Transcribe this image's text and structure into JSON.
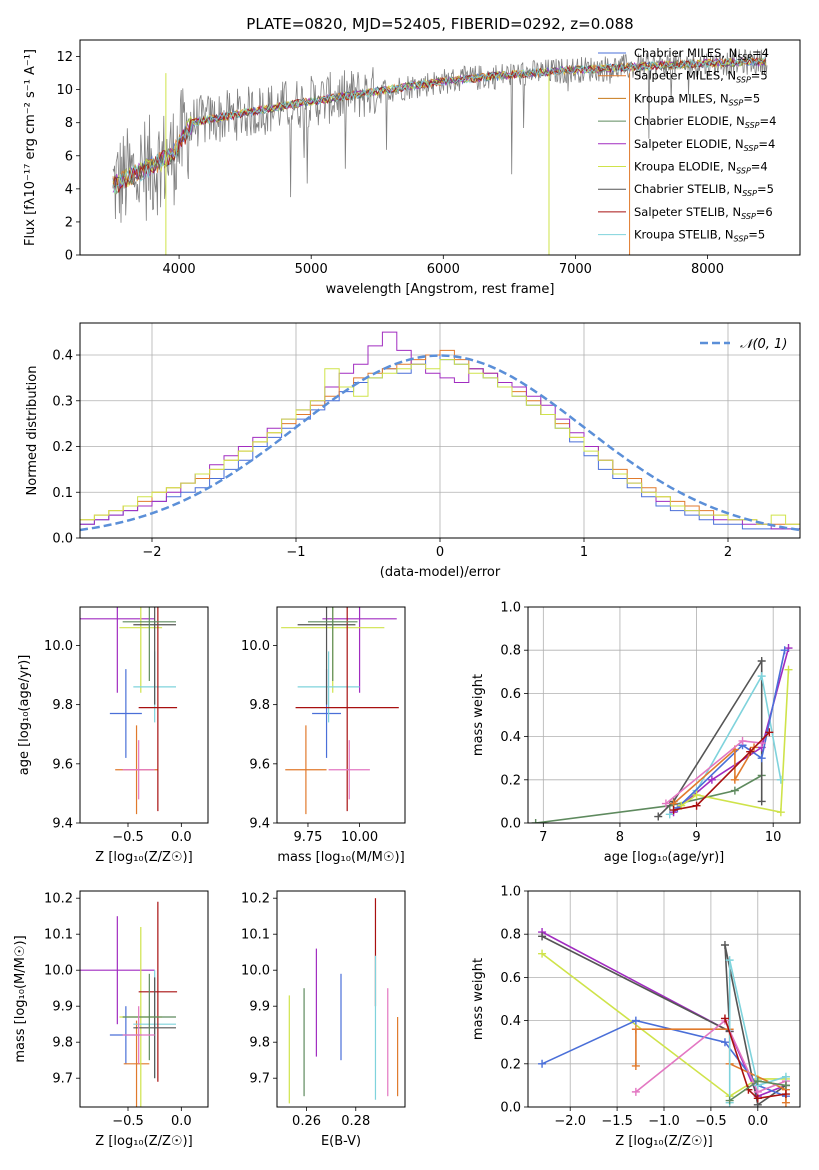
{
  "title": "PLATE=0820, MJD=52405, FIBERID=0292, z=0.088",
  "chart_data": [
    {
      "type": "line",
      "xlabel": "wavelength [Angstrom, rest frame]",
      "ylabel": "Flux [fλ10⁻¹⁷ erg cm⁻² s⁻¹ A⁻¹]",
      "xlim": [
        3250,
        8700
      ],
      "ylim": [
        0,
        13
      ],
      "xticks": [
        4000,
        5000,
        6000,
        7000,
        8000
      ],
      "yticks": [
        0,
        2,
        4,
        6,
        8,
        10,
        12
      ],
      "legend": "top-right",
      "series": [
        {
          "name": "Chabrier MILES, N_SSP=4",
          "color": "#4a6fd8"
        },
        {
          "name": "Salpeter MILES, N_SSP=5",
          "color": "#e07a2c"
        },
        {
          "name": "Kroupa MILES, N_SSP=5",
          "color": "#c77a1a"
        },
        {
          "name": "Chabrier ELODIE, N_SSP=4",
          "color": "#5e8a5e"
        },
        {
          "name": "Salpeter ELODIE, N_SSP=4",
          "color": "#a12cc0"
        },
        {
          "name": "Kroupa ELODIE, N_SSP=4",
          "color": "#cfe34a"
        },
        {
          "name": "Chabrier STELIB, N_SSP=5",
          "color": "#555555"
        },
        {
          "name": "Salpeter STELIB, N_SSP=6",
          "color": "#a81010"
        },
        {
          "name": "Kroupa STELIB, N_SSP=5",
          "color": "#7fd3dc"
        }
      ],
      "continuum": {
        "x": [
          3500,
          3700,
          3950,
          4100,
          4500,
          5000,
          5500,
          6000,
          6500,
          7000,
          7500,
          8000,
          8450
        ],
        "y": [
          4.2,
          5.0,
          6.0,
          8.0,
          8.6,
          9.3,
          9.9,
          10.5,
          10.9,
          11.2,
          11.4,
          11.6,
          11.7
        ]
      }
    },
    {
      "type": "step-histogram",
      "xlabel": "(data-model)/error",
      "ylabel": "Normed distribution",
      "xlim": [
        -2.5,
        2.5
      ],
      "ylim": [
        0,
        0.47
      ],
      "xticks": [
        -2,
        -1,
        0,
        1,
        2
      ],
      "yticks": [
        0.0,
        0.1,
        0.2,
        0.3,
        0.4
      ],
      "grid": true,
      "legend": "top-right",
      "reference": {
        "name": "𝒩(0, 1)",
        "color": "#5b8fd8",
        "mu": 0,
        "sigma": 1
      },
      "bin_width": 0.1,
      "sample_series": [
        {
          "color": "#4a6fd8",
          "values": [
            0.03,
            0.04,
            0.05,
            0.06,
            0.07,
            0.08,
            0.09,
            0.1,
            0.11,
            0.13,
            0.15,
            0.17,
            0.2,
            0.22,
            0.24,
            0.26,
            0.28,
            0.3,
            0.32,
            0.34,
            0.35,
            0.37,
            0.36,
            0.38,
            0.4,
            0.39,
            0.38,
            0.37,
            0.35,
            0.33,
            0.31,
            0.29,
            0.27,
            0.24,
            0.21,
            0.18,
            0.15,
            0.13,
            0.11,
            0.09,
            0.07,
            0.06,
            0.05,
            0.04,
            0.03,
            0.03,
            0.02,
            0.02,
            0.02,
            0.02
          ]
        },
        {
          "color": "#e07a2c",
          "values": [
            0.04,
            0.05,
            0.06,
            0.07,
            0.08,
            0.1,
            0.11,
            0.12,
            0.13,
            0.15,
            0.17,
            0.19,
            0.21,
            0.23,
            0.25,
            0.27,
            0.29,
            0.31,
            0.33,
            0.35,
            0.36,
            0.37,
            0.38,
            0.39,
            0.4,
            0.41,
            0.39,
            0.37,
            0.36,
            0.34,
            0.32,
            0.3,
            0.27,
            0.25,
            0.22,
            0.2,
            0.17,
            0.15,
            0.13,
            0.11,
            0.09,
            0.08,
            0.07,
            0.06,
            0.05,
            0.04,
            0.04,
            0.03,
            0.03,
            0.03
          ]
        },
        {
          "color": "#a12cc0",
          "values": [
            0.03,
            0.04,
            0.05,
            0.06,
            0.07,
            0.08,
            0.1,
            0.12,
            0.14,
            0.16,
            0.18,
            0.2,
            0.22,
            0.24,
            0.26,
            0.28,
            0.3,
            0.33,
            0.36,
            0.38,
            0.42,
            0.45,
            0.41,
            0.38,
            0.36,
            0.35,
            0.34,
            0.37,
            0.36,
            0.34,
            0.33,
            0.31,
            0.29,
            0.26,
            0.23,
            0.2,
            0.17,
            0.14,
            0.12,
            0.1,
            0.08,
            0.07,
            0.06,
            0.05,
            0.04,
            0.04,
            0.03,
            0.03,
            0.02,
            0.02
          ]
        },
        {
          "color": "#cfe34a",
          "values": [
            0.04,
            0.05,
            0.06,
            0.07,
            0.09,
            0.1,
            0.11,
            0.12,
            0.14,
            0.15,
            0.17,
            0.19,
            0.21,
            0.23,
            0.26,
            0.28,
            0.3,
            0.37,
            0.33,
            0.31,
            0.35,
            0.36,
            0.37,
            0.38,
            0.37,
            0.39,
            0.38,
            0.36,
            0.35,
            0.33,
            0.31,
            0.29,
            0.27,
            0.24,
            0.22,
            0.19,
            0.17,
            0.14,
            0.12,
            0.1,
            0.09,
            0.07,
            0.06,
            0.05,
            0.05,
            0.04,
            0.04,
            0.03,
            0.05,
            0.03
          ]
        }
      ]
    },
    {
      "type": "errorbar",
      "xlabel": "Z [log₁₀(Z/Z☉)]",
      "ylabel": "age  [log₁₀(age/yr)]",
      "xlim": [
        -0.95,
        0.25
      ],
      "ylim": [
        9.4,
        10.13
      ],
      "xticks": [
        -0.5,
        0.0
      ],
      "xticklabels": [
        "−0.5",
        "0.0"
      ],
      "yticks": [
        9.4,
        9.6,
        9.8,
        10.0
      ],
      "points": [
        {
          "color": "#a12cc0",
          "x": -0.6,
          "xerr": 0.35,
          "y": 10.09,
          "yerr": 0.25
        },
        {
          "color": "#4a6fd8",
          "x": -0.52,
          "xerr": 0.15,
          "y": 9.77,
          "yerr": 0.15
        },
        {
          "color": "#e07a2c",
          "x": -0.42,
          "xerr": 0.2,
          "y": 9.58,
          "yerr": 0.15
        },
        {
          "color": "#cfe34a",
          "x": -0.38,
          "xerr": 0.2,
          "y": 10.06,
          "yerr": 0.22
        },
        {
          "color": "#7fd3dc",
          "x": -0.25,
          "xerr": 0.2,
          "y": 9.86,
          "yerr": 0.12
        },
        {
          "color": "#a81010",
          "x": -0.22,
          "xerr": 0.18,
          "y": 9.79,
          "yerr": 0.35
        },
        {
          "color": "#555555",
          "x": -0.25,
          "xerr": 0.2,
          "y": 10.07,
          "yerr": 0.27
        },
        {
          "color": "#5e8a5e",
          "x": -0.3,
          "xerr": 0.25,
          "y": 10.08,
          "yerr": 0.2
        },
        {
          "color": "#e377c2",
          "x": -0.4,
          "xerr": 0.15,
          "y": 9.58,
          "yerr": 0.1
        }
      ]
    },
    {
      "type": "errorbar",
      "xlabel": "mass [log₁₀(M/M☉)]",
      "ylabel": "",
      "xlim": [
        9.6,
        10.22
      ],
      "ylim": [
        9.4,
        10.13
      ],
      "xticks": [
        9.75,
        10.0
      ],
      "xticklabels": [
        "9.75",
        "10.00"
      ],
      "yticks": [
        9.4,
        9.6,
        9.8,
        10.0
      ],
      "points": [
        {
          "color": "#a12cc0",
          "x": 10.0,
          "xerr": 0.18,
          "y": 10.09,
          "yerr": 0.25
        },
        {
          "color": "#4a6fd8",
          "x": 9.84,
          "xerr": 0.07,
          "y": 9.77,
          "yerr": 0.15
        },
        {
          "color": "#e07a2c",
          "x": 9.74,
          "xerr": 0.1,
          "y": 9.58,
          "yerr": 0.15
        },
        {
          "color": "#cfe34a",
          "x": 9.87,
          "xerr": 0.25,
          "y": 10.06,
          "yerr": 0.22
        },
        {
          "color": "#7fd3dc",
          "x": 9.85,
          "xerr": 0.15,
          "y": 9.86,
          "yerr": 0.12
        },
        {
          "color": "#a81010",
          "x": 9.94,
          "xerr": 0.25,
          "y": 9.79,
          "yerr": 0.35
        },
        {
          "color": "#555555",
          "x": 9.84,
          "xerr": 0.14,
          "y": 10.07,
          "yerr": 0.27
        },
        {
          "color": "#5e8a5e",
          "x": 9.87,
          "xerr": 0.12,
          "y": 10.08,
          "yerr": 0.2
        },
        {
          "color": "#e377c2",
          "x": 9.95,
          "xerr": 0.1,
          "y": 9.58,
          "yerr": 0.1
        }
      ]
    },
    {
      "type": "line",
      "xlabel": "age  [log₁₀(age/yr)]",
      "ylabel": "mass weight",
      "xlim": [
        6.8,
        10.35
      ],
      "ylim": [
        0,
        1
      ],
      "xticks": [
        7,
        8,
        9,
        10
      ],
      "yticks": [
        0.0,
        0.2,
        0.4,
        0.6,
        0.8,
        1.0
      ],
      "grid": true,
      "series": [
        {
          "color": "#5e8a5e",
          "x": [
            6.9,
            8.65,
            9.5,
            9.85
          ],
          "y": [
            0.0,
            0.08,
            0.15,
            0.22
          ]
        },
        {
          "color": "#555555",
          "x": [
            8.5,
            8.7,
            9.85,
            9.85
          ],
          "y": [
            0.03,
            0.1,
            0.75,
            0.1
          ]
        },
        {
          "color": "#7fd3dc",
          "x": [
            8.65,
            9.0,
            9.85,
            10.1
          ],
          "y": [
            0.04,
            0.15,
            0.68,
            0.2
          ]
        },
        {
          "color": "#a12cc0",
          "x": [
            8.7,
            9.2,
            9.85,
            10.2
          ],
          "y": [
            0.05,
            0.2,
            0.35,
            0.81
          ]
        },
        {
          "color": "#4a6fd8",
          "x": [
            8.75,
            9.6,
            9.85,
            10.15
          ],
          "y": [
            0.07,
            0.36,
            0.3,
            0.8
          ]
        },
        {
          "color": "#cfe34a",
          "x": [
            8.8,
            9.0,
            10.1,
            10.2
          ],
          "y": [
            0.08,
            0.13,
            0.05,
            0.71
          ]
        },
        {
          "color": "#e07a2c",
          "x": [
            8.7,
            9.5,
            9.5,
            9.75
          ],
          "y": [
            0.09,
            0.34,
            0.2,
            0.35
          ]
        },
        {
          "color": "#e377c2",
          "x": [
            8.6,
            9.6,
            9.85
          ],
          "y": [
            0.09,
            0.38,
            0.37
          ]
        },
        {
          "color": "#a81010",
          "x": [
            8.7,
            9.0,
            9.7,
            9.95
          ],
          "y": [
            0.06,
            0.08,
            0.33,
            0.42
          ]
        }
      ]
    },
    {
      "type": "errorbar",
      "xlabel": "Z [log₁₀(Z/Z☉)]",
      "ylabel": "mass [log₁₀(M/M☉)]",
      "xlim": [
        -0.95,
        0.25
      ],
      "ylim": [
        9.62,
        10.22
      ],
      "xticks": [
        -0.5,
        0.0
      ],
      "xticklabels": [
        "−0.5",
        "0.0"
      ],
      "yticks": [
        9.7,
        9.8,
        9.9,
        10.0,
        10.1,
        10.2
      ],
      "points": [
        {
          "color": "#a12cc0",
          "x": -0.6,
          "xerr": 0.35,
          "y": 10.0,
          "yerr": 0.15
        },
        {
          "color": "#4a6fd8",
          "x": -0.52,
          "xerr": 0.15,
          "y": 9.82,
          "yerr": 0.08
        },
        {
          "color": "#e07a2c",
          "x": -0.42,
          "xerr": 0.12,
          "y": 9.74,
          "yerr": 0.12
        },
        {
          "color": "#cfe34a",
          "x": -0.38,
          "xerr": 0.2,
          "y": 9.87,
          "yerr": 0.25
        },
        {
          "color": "#7fd3dc",
          "x": -0.25,
          "xerr": 0.2,
          "y": 9.85,
          "yerr": 0.15
        },
        {
          "color": "#a81010",
          "x": -0.22,
          "xerr": 0.18,
          "y": 9.94,
          "yerr": 0.25
        },
        {
          "color": "#555555",
          "x": -0.25,
          "xerr": 0.2,
          "y": 9.84,
          "yerr": 0.14
        },
        {
          "color": "#5e8a5e",
          "x": -0.3,
          "xerr": 0.25,
          "y": 9.87,
          "yerr": 0.12
        },
        {
          "color": "#e377c2",
          "x": -0.4,
          "xerr": 0.15,
          "y": 9.82,
          "yerr": 0.08
        }
      ]
    },
    {
      "type": "errorbar",
      "xlabel": "E(B-V)",
      "ylabel": "",
      "xlim": [
        0.248,
        0.3
      ],
      "ylim": [
        9.62,
        10.22
      ],
      "xticks": [
        0.26,
        0.28
      ],
      "xticklabels": [
        "0.26",
        "0.28"
      ],
      "yticks": [
        9.7,
        9.8,
        9.9,
        10.0,
        10.1,
        10.2
      ],
      "points": [
        {
          "color": "#cfe34a",
          "x": 0.253,
          "yerr": 0.15,
          "y": 9.78
        },
        {
          "color": "#5e8a5e",
          "x": 0.259,
          "yerr": 0.15,
          "y": 9.8
        },
        {
          "color": "#a12cc0",
          "x": 0.264,
          "yerr": 0.15,
          "y": 9.91
        },
        {
          "color": "#4a6fd8",
          "x": 0.274,
          "yerr": 0.12,
          "y": 9.87
        },
        {
          "color": "#a81010",
          "x": 0.288,
          "yerr": 0.15,
          "y": 10.05
        },
        {
          "color": "#7fd3dc",
          "x": 0.288,
          "yerr": 0.2,
          "y": 9.84
        },
        {
          "color": "#e377c2",
          "x": 0.293,
          "yerr": 0.15,
          "y": 9.8
        },
        {
          "color": "#e07a2c",
          "x": 0.297,
          "yerr": 0.11,
          "y": 9.76
        }
      ]
    },
    {
      "type": "line",
      "xlabel": "Z [log₁₀(Z/Z☉)]",
      "ylabel": "mass weight",
      "xlim": [
        -2.45,
        0.45
      ],
      "ylim": [
        0,
        1
      ],
      "xticks": [
        -2.0,
        -1.5,
        -1.0,
        -0.5,
        0.0
      ],
      "xticklabels": [
        "−2.0",
        "−1.5",
        "−1.0",
        "−0.5",
        "0.0"
      ],
      "yticks": [
        0.0,
        0.2,
        0.4,
        0.6,
        0.8,
        1.0
      ],
      "grid": true,
      "series": [
        {
          "color": "#a12cc0",
          "x": [
            -2.3,
            -0.3,
            0.0,
            0.3
          ],
          "y": [
            0.81,
            0.35,
            0.05,
            0.1
          ]
        },
        {
          "color": "#555555",
          "x": [
            -2.3,
            -0.3,
            -0.35,
            0.0,
            0.3
          ],
          "y": [
            0.79,
            0.35,
            0.75,
            0.01,
            0.1
          ]
        },
        {
          "color": "#cfe34a",
          "x": [
            -2.3,
            -0.3,
            0.0,
            0.3
          ],
          "y": [
            0.71,
            0.05,
            0.13,
            0.13
          ]
        },
        {
          "color": "#4a6fd8",
          "x": [
            -2.3,
            -1.3,
            -0.35,
            0.0,
            0.3
          ],
          "y": [
            0.2,
            0.4,
            0.3,
            0.1,
            0.05
          ]
        },
        {
          "color": "#e07a2c",
          "x": [
            -1.3,
            -1.3,
            -0.3,
            -0.3,
            0.3,
            0.3
          ],
          "y": [
            0.19,
            0.36,
            0.36,
            0.2,
            0.08,
            0.02
          ]
        },
        {
          "color": "#e377c2",
          "x": [
            -1.3,
            -0.35,
            0.0,
            0.3
          ],
          "y": [
            0.07,
            0.4,
            0.07,
            0.12
          ]
        },
        {
          "color": "#7fd3dc",
          "x": [
            -0.3,
            -0.3,
            0.0,
            0.3
          ],
          "y": [
            0.02,
            0.68,
            0.1,
            0.14
          ]
        },
        {
          "color": "#a81010",
          "x": [
            -0.35,
            -0.1,
            0.0,
            0.3
          ],
          "y": [
            0.41,
            0.08,
            0.04,
            0.06
          ]
        },
        {
          "color": "#5e8a5e",
          "x": [
            -0.3,
            0.0,
            0.3
          ],
          "y": [
            0.03,
            0.12,
            0.1
          ]
        }
      ]
    }
  ]
}
